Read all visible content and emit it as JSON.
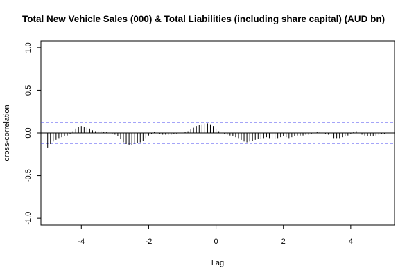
{
  "chart_data": {
    "type": "bar",
    "title": "Total New Vehicle Sales (000) & Total Liabilities (including share capital) (AUD bn)",
    "xlabel": "Lag",
    "ylabel": "cross-correlation",
    "xlim": [
      -5.2,
      5.3
    ],
    "ylim": [
      -1.08,
      1.08
    ],
    "x_ticks": [
      -4,
      -2,
      0,
      2,
      4
    ],
    "x_tick_labels": [
      "-4",
      "-2",
      "0",
      "2",
      "4"
    ],
    "y_ticks": [
      -1.0,
      -0.5,
      0.0,
      0.5,
      1.0
    ],
    "y_tick_labels": [
      "-1.0",
      "-0.5",
      "0.0",
      "0.5",
      "1.0"
    ],
    "confidence_bounds": [
      0.122,
      -0.122
    ],
    "confidence_line_color": "#4a4af0",
    "bar_color": "#000000",
    "grid": false,
    "x": [
      -5.0,
      -4.9167,
      -4.8333,
      -4.75,
      -4.6667,
      -4.5833,
      -4.5,
      -4.4167,
      -4.3333,
      -4.25,
      -4.1667,
      -4.0833,
      -4.0,
      -3.9167,
      -3.8333,
      -3.75,
      -3.6667,
      -3.5833,
      -3.5,
      -3.4167,
      -3.3333,
      -3.25,
      -3.1667,
      -3.0833,
      -3.0,
      -2.9167,
      -2.8333,
      -2.75,
      -2.6667,
      -2.5833,
      -2.5,
      -2.4167,
      -2.3333,
      -2.25,
      -2.1667,
      -2.0833,
      -2.0,
      -1.9167,
      -1.8333,
      -1.75,
      -1.6667,
      -1.5833,
      -1.5,
      -1.4167,
      -1.3333,
      -1.25,
      -1.1667,
      -1.0833,
      -1.0,
      -0.9167,
      -0.8333,
      -0.75,
      -0.6667,
      -0.5833,
      -0.5,
      -0.4167,
      -0.3333,
      -0.25,
      -0.1667,
      -0.0833,
      0.0,
      0.0833,
      0.1667,
      0.25,
      0.3333,
      0.4167,
      0.5,
      0.5833,
      0.6667,
      0.75,
      0.8333,
      0.9167,
      1.0,
      1.0833,
      1.1667,
      1.25,
      1.3333,
      1.4167,
      1.5,
      1.5833,
      1.6667,
      1.75,
      1.8333,
      1.9167,
      2.0,
      2.0833,
      2.1667,
      2.25,
      2.3333,
      2.4167,
      2.5,
      2.5833,
      2.6667,
      2.75,
      2.8333,
      2.9167,
      3.0,
      3.0833,
      3.1667,
      3.25,
      3.3333,
      3.4167,
      3.5,
      3.5833,
      3.6667,
      3.75,
      3.8333,
      3.9167,
      4.0,
      4.0833,
      4.1667,
      4.25,
      4.3333,
      4.4167,
      4.5,
      4.5833,
      4.6667,
      4.75,
      4.8333,
      4.9167,
      5.0
    ],
    "values": [
      -0.17,
      -0.13,
      -0.1,
      -0.08,
      -0.06,
      -0.05,
      -0.04,
      -0.03,
      -0.01,
      0.02,
      0.05,
      0.07,
      0.08,
      0.07,
      0.06,
      0.05,
      0.03,
      0.02,
      0.02,
      0.02,
      0.01,
      0.01,
      0.0,
      -0.01,
      -0.02,
      -0.04,
      -0.07,
      -0.11,
      -0.13,
      -0.14,
      -0.14,
      -0.13,
      -0.12,
      -0.11,
      -0.09,
      -0.06,
      -0.03,
      -0.01,
      0.01,
      0.0,
      -0.01,
      -0.02,
      -0.02,
      -0.02,
      -0.02,
      -0.01,
      -0.01,
      0.0,
      0.0,
      0.01,
      0.02,
      0.04,
      0.06,
      0.08,
      0.09,
      0.1,
      0.11,
      0.11,
      0.1,
      0.08,
      0.05,
      0.02,
      0.0,
      -0.01,
      -0.02,
      -0.03,
      -0.04,
      -0.05,
      -0.06,
      -0.08,
      -0.1,
      -0.11,
      -0.1,
      -0.09,
      -0.08,
      -0.07,
      -0.07,
      -0.06,
      -0.05,
      -0.06,
      -0.07,
      -0.07,
      -0.06,
      -0.05,
      -0.04,
      -0.05,
      -0.06,
      -0.05,
      -0.04,
      -0.03,
      -0.03,
      -0.03,
      -0.02,
      -0.02,
      -0.01,
      0.0,
      0.01,
      0.01,
      0.0,
      -0.01,
      -0.02,
      -0.04,
      -0.06,
      -0.06,
      -0.06,
      -0.05,
      -0.04,
      -0.03,
      -0.01,
      0.01,
      0.02,
      0.0,
      -0.02,
      -0.03,
      -0.04,
      -0.04,
      -0.04,
      -0.03,
      -0.02,
      -0.01,
      -0.01
    ]
  }
}
